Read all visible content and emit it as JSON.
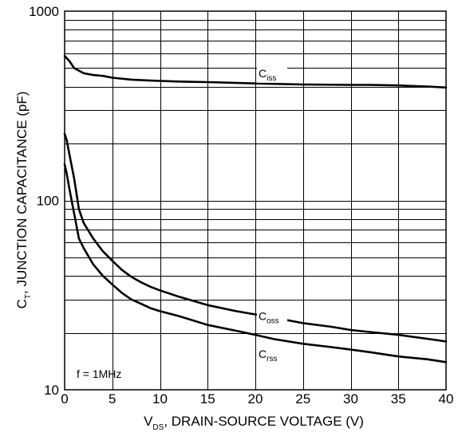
{
  "chart_data": {
    "type": "line",
    "ylabel": {
      "main": "C",
      "sub": "T",
      "rest": ", JUNCTION CAPACITANCE (pF)"
    },
    "xlabel": {
      "main": "V",
      "sub": "DS",
      "rest": ", DRAIN-SOURCE VOLTAGE (V)"
    },
    "xlim": [
      0,
      40
    ],
    "ylim": [
      10,
      1000
    ],
    "yscale": "log",
    "grid": true,
    "x_ticks": [
      "0",
      "5",
      "10",
      "15",
      "20",
      "25",
      "30",
      "35",
      "40"
    ],
    "y_ticks": [
      "10",
      "100",
      "1000"
    ],
    "annotation": "f = 1MHz",
    "series": [
      {
        "name": "Ciss",
        "label_main": "C",
        "label_sub": "iss",
        "x": [
          0,
          0.5,
          1,
          2,
          3,
          4,
          5,
          7,
          9,
          10,
          12,
          15,
          20,
          25,
          30,
          32,
          35,
          38,
          40
        ],
        "y": [
          580,
          545,
          500,
          470,
          460,
          455,
          445,
          435,
          430,
          428,
          425,
          422,
          415,
          410,
          408,
          408,
          405,
          400,
          395
        ]
      },
      {
        "name": "Coss",
        "label_main": "C",
        "label_sub": "oss",
        "x": [
          0,
          0.2,
          0.5,
          1,
          1.5,
          2,
          3,
          4,
          5,
          6,
          7,
          8,
          9,
          10,
          12,
          15,
          18,
          20,
          22,
          25,
          28,
          30,
          32,
          35,
          38,
          40
        ],
        "y": [
          225,
          210,
          175,
          130,
          90,
          76,
          63,
          54,
          48,
          43,
          39.5,
          37,
          35,
          33.5,
          31,
          28,
          26,
          25,
          24,
          22.5,
          21.5,
          20.7,
          20.2,
          19.5,
          18.6,
          18
        ]
      },
      {
        "name": "Crss",
        "label_main": "C",
        "label_sub": "rss",
        "x": [
          0,
          0.2,
          0.5,
          1,
          1.5,
          2,
          3,
          4,
          5,
          6,
          7,
          8,
          9,
          10,
          12,
          15,
          18,
          20,
          22,
          25,
          28,
          30,
          32,
          35,
          38,
          40
        ],
        "y": [
          155,
          140,
          115,
          85,
          63,
          56,
          46,
          40,
          36,
          32.5,
          30,
          28.5,
          27,
          26,
          24.5,
          22,
          20.5,
          19.5,
          18.5,
          17.5,
          16.8,
          16.3,
          15.8,
          15,
          14.5,
          14
        ]
      }
    ]
  }
}
